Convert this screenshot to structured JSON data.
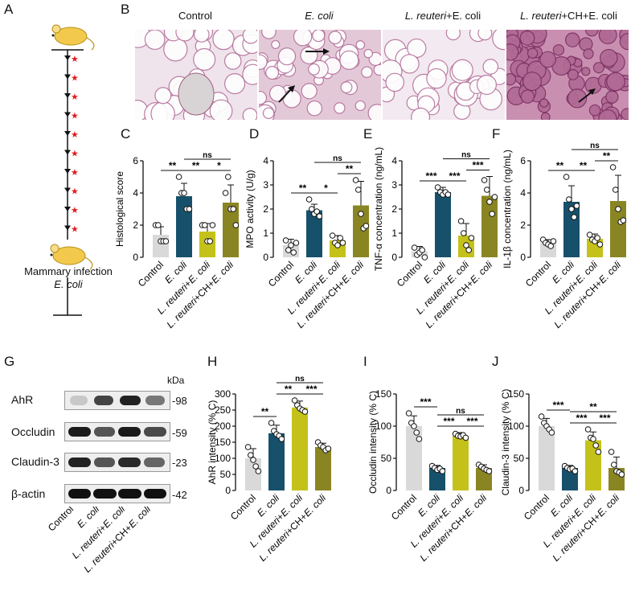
{
  "panel_letters": {
    "A": "A",
    "B": "B",
    "C": "C",
    "D": "D",
    "E": "E",
    "F": "F",
    "G": "G",
    "H": "H",
    "I": "I",
    "J": "J"
  },
  "panel_a": {
    "caption_line1": "Mammary infection",
    "caption_line2": "E. coli"
  },
  "histology_titles": [
    {
      "plain": "Control",
      "italic": ""
    },
    {
      "plain": "",
      "italic": "E. coli"
    },
    {
      "plain": "+E. coli",
      "italic": "L. reuteri"
    },
    {
      "plain": "+CH+E. coli",
      "italic": "L. reuteri"
    }
  ],
  "groups": [
    "Control",
    "E. coli",
    "L. reuteri+E. coli",
    "L. reuteri+CH+E. coli"
  ],
  "colors": {
    "control": "#d9d9d9",
    "ecoli": "#17506b",
    "reuteri": "#c4c21a",
    "reuteri_ch": "#8a8523",
    "arrow": "#111111",
    "star": "#e41a1c"
  },
  "western_blot": {
    "kda_label": "kDa",
    "rows": [
      {
        "name": "AhR",
        "kda": "-98"
      },
      {
        "name": "Occludin",
        "kda": "-59"
      },
      {
        "name": "Claudin-3",
        "kda": "-23"
      },
      {
        "name": "β-actin",
        "kda": "-42"
      }
    ]
  },
  "chart_data": [
    {
      "panel": "C",
      "type": "bar",
      "ylabel": "Histological score",
      "ylim": [
        0,
        6
      ],
      "yticks": [
        0,
        2,
        4,
        6
      ],
      "categories": [
        "Control",
        "E. coli",
        "L. reuteri+E. coli",
        "L. reuteri+CH+E. coli"
      ],
      "values": [
        1.4,
        3.8,
        1.6,
        3.4
      ],
      "errors": [
        0.5,
        0.8,
        0.5,
        1.1
      ],
      "points": [
        [
          2.0,
          2.0,
          1.0,
          1.0,
          1.0
        ],
        [
          5.0,
          4.0,
          4.0,
          3.0,
          3.0
        ],
        [
          2.0,
          2.0,
          1.0,
          1.0,
          2.0
        ],
        [
          4.0,
          5.0,
          3.0,
          3.0,
          2.0
        ]
      ],
      "significance": [
        {
          "a": 0,
          "b": 1,
          "label": "**"
        },
        {
          "a": 1,
          "b": 2,
          "label": "**"
        },
        {
          "a": 2,
          "b": 3,
          "label": "*"
        },
        {
          "a": 1,
          "b": 3,
          "label": "ns"
        }
      ]
    },
    {
      "panel": "D",
      "type": "bar",
      "ylabel": "MPO activity (U/g)",
      "ylim": [
        0,
        4
      ],
      "yticks": [
        0,
        1,
        2,
        3,
        4
      ],
      "categories": [
        "Control",
        "E. coli",
        "L. reuteri+E. coli",
        "L. reuteri+CH+E. coli"
      ],
      "values": [
        0.5,
        1.95,
        0.7,
        2.15
      ],
      "errors": [
        0.25,
        0.25,
        0.2,
        1.0
      ],
      "points": [
        [
          0.7,
          0.3,
          0.5,
          0.2,
          0.6
        ],
        [
          2.4,
          2.0,
          1.8,
          1.9,
          1.7
        ],
        [
          0.9,
          0.6,
          0.5,
          0.8,
          0.6
        ],
        [
          3.2,
          2.8,
          1.8,
          1.2,
          1.3
        ]
      ],
      "significance": [
        {
          "a": 0,
          "b": 1,
          "label": "**"
        },
        {
          "a": 1,
          "b": 2,
          "label": "*"
        },
        {
          "a": 2,
          "b": 3,
          "label": "**"
        },
        {
          "a": 1,
          "b": 3,
          "label": "ns"
        }
      ]
    },
    {
      "panel": "E",
      "type": "bar",
      "ylabel": "TNF-α concentration (ng/mL)",
      "ylim": [
        0,
        4
      ],
      "yticks": [
        0,
        1,
        2,
        3,
        4
      ],
      "categories": [
        "Control",
        "E. coli",
        "L. reuteri+E. coli",
        "L. reuteri+CH+E. coli"
      ],
      "values": [
        0.25,
        2.7,
        0.9,
        2.55
      ],
      "errors": [
        0.2,
        0.2,
        0.5,
        0.8
      ],
      "points": [
        [
          0.4,
          0.1,
          0.2,
          0.3,
          0.0
        ],
        [
          2.9,
          2.7,
          2.6,
          2.7,
          2.6
        ],
        [
          1.5,
          1.0,
          0.5,
          0.3,
          0.8
        ],
        [
          3.2,
          2.8,
          2.3,
          1.8,
          2.5
        ]
      ],
      "significance": [
        {
          "a": 0,
          "b": 1,
          "label": "***"
        },
        {
          "a": 1,
          "b": 2,
          "label": "***"
        },
        {
          "a": 2,
          "b": 3,
          "label": "***"
        },
        {
          "a": 1,
          "b": 3,
          "label": "ns"
        }
      ]
    },
    {
      "panel": "F",
      "type": "bar",
      "ylabel": "IL-1β concentration (ng/mL)",
      "ylim": [
        0,
        6
      ],
      "yticks": [
        0,
        2,
        4,
        6
      ],
      "categories": [
        "Control",
        "E. coli",
        "L. reuteri+E. coli",
        "L. reuteri+CH+E. coli"
      ],
      "values": [
        0.9,
        3.45,
        1.15,
        3.5
      ],
      "errors": [
        0.2,
        1.0,
        0.3,
        1.6
      ],
      "points": [
        [
          1.1,
          0.9,
          0.8,
          0.7,
          1.0
        ],
        [
          5.0,
          3.6,
          3.0,
          2.5,
          3.2
        ],
        [
          1.4,
          1.1,
          1.0,
          1.2,
          0.8
        ],
        [
          5.6,
          4.2,
          3.0,
          2.2,
          2.3
        ]
      ],
      "significance": [
        {
          "a": 0,
          "b": 1,
          "label": "**"
        },
        {
          "a": 1,
          "b": 2,
          "label": "**"
        },
        {
          "a": 2,
          "b": 3,
          "label": "**"
        },
        {
          "a": 1,
          "b": 3,
          "label": "ns"
        }
      ]
    },
    {
      "panel": "H",
      "type": "bar",
      "ylabel": "AhR intensity (% C)",
      "ylim": [
        0,
        300
      ],
      "yticks": [
        0,
        50,
        100,
        150,
        200,
        250,
        300
      ],
      "categories": [
        "Control",
        "E. coli",
        "L. reuteri+E. coli",
        "L. reuteri+CH+E. coli"
      ],
      "values": [
        100,
        178,
        258,
        135
      ],
      "errors": [
        30,
        25,
        20,
        12
      ],
      "points": [
        [
          135,
          110,
          95,
          75,
          60
        ],
        [
          210,
          185,
          175,
          170,
          160
        ],
        [
          280,
          265,
          255,
          250,
          245
        ],
        [
          150,
          140,
          135,
          125,
          130
        ]
      ],
      "significance": [
        {
          "a": 0,
          "b": 1,
          "label": "**"
        },
        {
          "a": 1,
          "b": 2,
          "label": "**"
        },
        {
          "a": 2,
          "b": 3,
          "label": "***"
        },
        {
          "a": 1,
          "b": 3,
          "label": "ns"
        }
      ]
    },
    {
      "panel": "I",
      "type": "bar",
      "ylabel": "Occludin intensity (% C)",
      "ylim": [
        0,
        150
      ],
      "yticks": [
        0,
        50,
        100,
        150
      ],
      "categories": [
        "Control",
        "E. coli",
        "L. reuteri+E. coli",
        "L. reuteri+CH+E. coli"
      ],
      "values": [
        100,
        35,
        85,
        35
      ],
      "errors": [
        16,
        4,
        5,
        5
      ],
      "points": [
        [
          120,
          105,
          100,
          90,
          80
        ],
        [
          38,
          35,
          32,
          34,
          30
        ],
        [
          88,
          85,
          84,
          86,
          82
        ],
        [
          40,
          37,
          34,
          32,
          30
        ]
      ],
      "significance": [
        {
          "a": 0,
          "b": 1,
          "label": "***"
        },
        {
          "a": 1,
          "b": 2,
          "label": "***"
        },
        {
          "a": 2,
          "b": 3,
          "label": "***"
        },
        {
          "a": 1,
          "b": 3,
          "label": "ns"
        }
      ]
    },
    {
      "panel": "J",
      "type": "bar",
      "ylabel": "Claudin-3 intensity (% C)",
      "ylim": [
        0,
        150
      ],
      "yticks": [
        0,
        50,
        100,
        150
      ],
      "categories": [
        "Control",
        "E. coli",
        "L. reuteri+E. coli",
        "L. reuteri+CH+E. coli"
      ],
      "values": [
        100,
        35,
        78,
        35
      ],
      "errors": [
        12,
        4,
        13,
        17
      ],
      "points": [
        [
          115,
          105,
          100,
          95,
          90
        ],
        [
          38,
          35,
          33,
          34,
          30
        ],
        [
          95,
          82,
          80,
          70,
          60
        ],
        [
          60,
          40,
          30,
          28,
          25
        ]
      ],
      "significance": [
        {
          "a": 0,
          "b": 1,
          "label": "***"
        },
        {
          "a": 1,
          "b": 2,
          "label": "***"
        },
        {
          "a": 2,
          "b": 3,
          "label": "***"
        },
        {
          "a": 1,
          "b": 3,
          "label": "**"
        }
      ]
    }
  ]
}
